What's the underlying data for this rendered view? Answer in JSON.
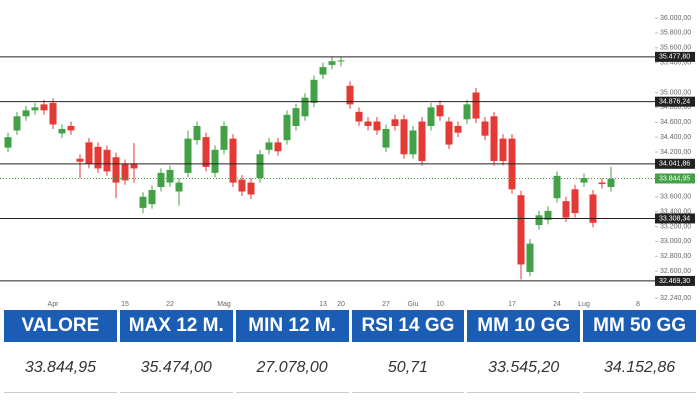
{
  "chart_data": {
    "type": "candlestick",
    "categories": [
      null,
      null,
      null,
      null,
      null,
      "Apr",
      null,
      null,
      null,
      null,
      null,
      null,
      null,
      "15",
      null,
      null,
      null,
      null,
      "22",
      null,
      null,
      null,
      null,
      null,
      "Mag",
      null,
      null,
      null,
      null,
      null,
      null,
      null,
      null,
      null,
      null,
      "13",
      null,
      "20",
      null,
      null,
      null,
      null,
      "27",
      null,
      null,
      "Giu",
      null,
      null,
      "10",
      null,
      null,
      null,
      null,
      null,
      null,
      null,
      "17",
      null,
      null,
      null,
      null,
      "24",
      null,
      null,
      "Lug",
      null,
      null,
      null,
      null,
      null,
      "8"
    ],
    "open": [
      34260,
      34490,
      34680,
      34760,
      34840,
      34860,
      34450,
      34550,
      34110,
      34330,
      34270,
      34230,
      34130,
      34040,
      34040,
      33450,
      33500,
      33730,
      33790,
      33670,
      33920,
      34360,
      34400,
      33920,
      34230,
      34380,
      33830,
      33790,
      33850,
      34230,
      34330,
      34360,
      34550,
      34680,
      34860,
      35240,
      35370,
      35420,
      35090,
      34740,
      34610,
      34610,
      34260,
      34640,
      34640,
      34170,
      34610,
      34550,
      34830,
      34610,
      34550,
      34640,
      35000,
      34610,
      34680,
      34380,
      34380,
      33620,
      32590,
      33220,
      33290,
      33580,
      33540,
      33700,
      33790,
      33630,
      33790,
      33730,
      null,
      null,
      null
    ],
    "high": [
      34460,
      34740,
      34820,
      34860,
      34900,
      34920,
      34570,
      34610,
      34170,
      34390,
      34330,
      34290,
      34190,
      34100,
      34320,
      33660,
      33750,
      33980,
      34020,
      33850,
      34490,
      34610,
      34460,
      34290,
      34610,
      34440,
      33890,
      33850,
      34230,
      34390,
      34390,
      34760,
      34850,
      34990,
      35230,
      35400,
      35480,
      35480,
      35150,
      34800,
      34670,
      34670,
      34570,
      34700,
      34700,
      34550,
      34670,
      34860,
      34890,
      34670,
      34610,
      34900,
      35060,
      34670,
      34740,
      34440,
      34440,
      33680,
      33030,
      33410,
      33470,
      33940,
      33600,
      33760,
      33910,
      33690,
      33850,
      34000,
      null,
      null,
      null
    ],
    "low": [
      34200,
      34430,
      34620,
      34700,
      34700,
      34510,
      34390,
      34430,
      33850,
      33980,
      33920,
      33880,
      33580,
      33760,
      33790,
      33380,
      33440,
      33670,
      33730,
      33480,
      33860,
      34300,
      33940,
      33860,
      34170,
      33730,
      33610,
      33570,
      33790,
      34170,
      34150,
      34300,
      34490,
      34620,
      34800,
      35180,
      35310,
      35350,
      34780,
      34550,
      34490,
      34430,
      34200,
      34490,
      34110,
      34110,
      34020,
      34490,
      34620,
      34240,
      34400,
      34580,
      34590,
      34360,
      34020,
      34020,
      33640,
      32490,
      32530,
      33160,
      33230,
      33520,
      33260,
      33320,
      33730,
      33190,
      33710,
      33670,
      null,
      null,
      null
    ],
    "close": [
      34400,
      34680,
      34760,
      34800,
      34760,
      34570,
      34510,
      34490,
      34070,
      34040,
      33980,
      33940,
      33790,
      33820,
      33980,
      33600,
      33690,
      33920,
      33960,
      33790,
      34380,
      34550,
      34000,
      34230,
      34550,
      33790,
      33670,
      33630,
      34170,
      34330,
      34210,
      34700,
      34790,
      34930,
      35170,
      35340,
      35420,
      35430,
      34840,
      34610,
      34550,
      34490,
      34510,
      34550,
      34170,
      34490,
      34080,
      34800,
      34680,
      34300,
      34460,
      34840,
      34650,
      34420,
      34080,
      34080,
      33700,
      32690,
      32970,
      33350,
      33410,
      33880,
      33320,
      33380,
      33850,
      33250,
      33770,
      33840,
      null,
      null,
      null
    ],
    "up_color": "#43a047",
    "down_color": "#e53935",
    "ylim": [
      32240,
      36000
    ],
    "yticks": [
      {
        "value": 36000,
        "label": "36.000,00"
      },
      {
        "value": 35800,
        "label": "35.800,00"
      },
      {
        "value": 35600,
        "label": "35.600,00"
      },
      {
        "value": 35400,
        "label": "35.400,00"
      },
      {
        "value": 35000,
        "label": "35.000,00"
      },
      {
        "value": 34800,
        "label": "34.800,00"
      },
      {
        "value": 34600,
        "label": "34.600,00"
      },
      {
        "value": 34400,
        "label": "34.400,00"
      },
      {
        "value": 34200,
        "label": "34.200,00"
      },
      {
        "value": 33600,
        "label": "33.600,00"
      },
      {
        "value": 33400,
        "label": "33.400,00"
      },
      {
        "value": 33200,
        "label": "33.200,00"
      },
      {
        "value": 33000,
        "label": "33.000,00"
      },
      {
        "value": 32800,
        "label": "32.800,00"
      },
      {
        "value": 32600,
        "label": "32.600,00"
      },
      {
        "value": 32240,
        "label": "32.240,00"
      }
    ],
    "levels": [
      {
        "value": 35477.8,
        "label": "35.477,80"
      },
      {
        "value": 34876.24,
        "label": "34.876,24"
      },
      {
        "value": 34041.86,
        "label": "34.041,86"
      },
      {
        "value": 33308.34,
        "label": "33.308,34"
      },
      {
        "value": 32469.3,
        "label": "32.469,30"
      }
    ],
    "last_price": {
      "value": 33844.95,
      "label": "33.844,95",
      "color": "#43a047"
    }
  },
  "table": {
    "headers": [
      "VALORE",
      "MAX 12 M.",
      "MIN 12 M.",
      "RSI 14 GG",
      "MM 10 GG",
      "MM 50 GG"
    ],
    "values": [
      "33.844,95",
      "35.474,00",
      "27.078,00",
      "50,71",
      "33.545,20",
      "34.152,86"
    ]
  }
}
